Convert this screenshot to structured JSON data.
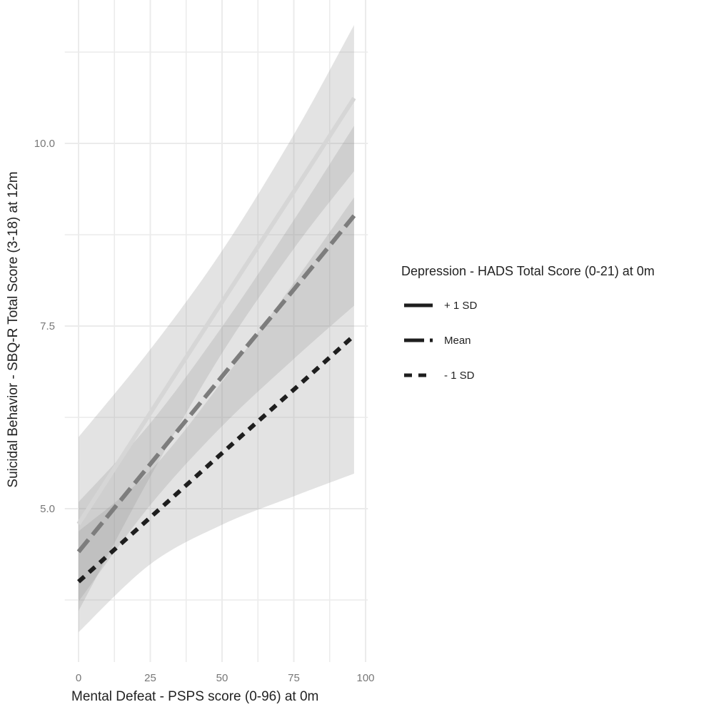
{
  "chart_data": {
    "type": "line",
    "title": "",
    "xlabel": "Mental Defeat - PSPS score (0-96) at 0m",
    "ylabel": "Suicidal Behavior - SBQ-R Total Score (3-18) at 12m",
    "xlim": [
      -4.8,
      100.8
    ],
    "ylim": [
      2.9,
      12.0
    ],
    "x_ticks": [
      "0",
      "25",
      "50",
      "75",
      "100"
    ],
    "y_ticks": [
      "5.0",
      "7.5",
      "10.0"
    ],
    "grid": true,
    "legend_position": "right",
    "legend_title": "Depression - HADS Total Score (0-21) at 0m",
    "x": [
      0,
      25,
      50,
      75,
      96
    ],
    "series": [
      {
        "name": "+ 1 SD",
        "linetype": "solid",
        "color": "#d6d6d6",
        "values": [
          4.79,
          6.31,
          7.83,
          9.34,
          10.62
        ],
        "lower": [
          3.6,
          5.44,
          7.13,
          8.56,
          9.62
        ],
        "upper": [
          5.98,
          7.18,
          8.53,
          10.12,
          11.62
        ]
      },
      {
        "name": "Mean",
        "linetype": "longdash",
        "color": "#7d7d7d",
        "values": [
          4.41,
          5.61,
          6.81,
          8.0,
          9.01
        ],
        "lower": [
          3.73,
          5.05,
          6.13,
          7.05,
          7.78
        ],
        "upper": [
          5.09,
          6.17,
          7.49,
          8.95,
          10.24
        ]
      },
      {
        "name": "- 1 SD",
        "linetype": "dashed",
        "color": "#1e1e1e",
        "values": [
          4.0,
          4.88,
          5.76,
          6.63,
          7.37
        ],
        "lower": [
          3.31,
          4.24,
          4.78,
          5.17,
          5.48
        ],
        "upper": [
          4.69,
          5.52,
          6.74,
          8.09,
          9.26
        ]
      }
    ],
    "ribbon_color": "#9a9a9a",
    "legend_key_color": "#1e1e1e"
  }
}
